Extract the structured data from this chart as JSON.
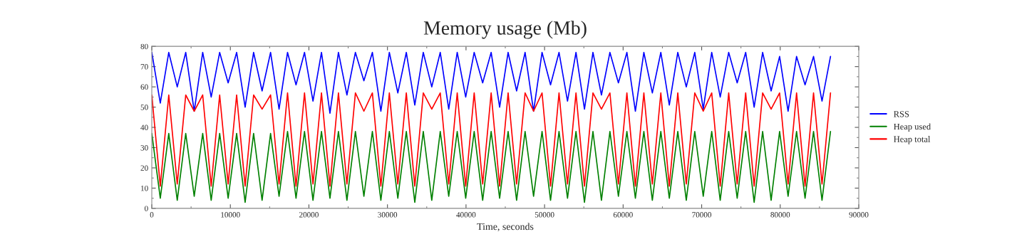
{
  "chart_data": {
    "type": "line",
    "title": "Memory usage (Mb)",
    "xlabel": "Time, seconds",
    "x": [
      0,
      1080,
      2160,
      3240,
      4320,
      5400,
      6480,
      7560,
      8640,
      9720,
      10800,
      11880,
      12960,
      14040,
      15120,
      16200,
      17280,
      18360,
      19440,
      20520,
      21600,
      22680,
      23760,
      24840,
      25920,
      27000,
      28080,
      29160,
      30240,
      31320,
      32400,
      33480,
      34560,
      35640,
      36720,
      37800,
      38880,
      39960,
      41040,
      42120,
      43200,
      44280,
      45360,
      46440,
      47520,
      48600,
      49680,
      50760,
      51840,
      52920,
      54000,
      55080,
      56160,
      57240,
      58320,
      59400,
      60480,
      61560,
      62640,
      63720,
      64800,
      65880,
      66960,
      68040,
      69120,
      70200,
      71280,
      72360,
      73440,
      74520,
      75600,
      76680,
      77760,
      78840,
      79920,
      81000,
      82080,
      83160,
      84240,
      85320,
      86400
    ],
    "series": [
      {
        "name": "RSS",
        "color": "#0000ff",
        "values": [
          77,
          52,
          77,
          60,
          77,
          48,
          77,
          55,
          77,
          62,
          77,
          50,
          77,
          58,
          77,
          49,
          77,
          61,
          77,
          53,
          77,
          47,
          77,
          56,
          77,
          63,
          77,
          48,
          77,
          57,
          77,
          51,
          77,
          60,
          77,
          49,
          77,
          55,
          77,
          62,
          77,
          50,
          77,
          58,
          77,
          48,
          77,
          61,
          77,
          53,
          77,
          49,
          77,
          56,
          77,
          62,
          77,
          48,
          77,
          57,
          77,
          51,
          77,
          60,
          77,
          49,
          77,
          55,
          77,
          62,
          77,
          50,
          77,
          58,
          75,
          48,
          75,
          61,
          75,
          53,
          75
        ]
      },
      {
        "name": "Heap used",
        "color": "#008000",
        "values": [
          37,
          5,
          37,
          4,
          37,
          6,
          37,
          4,
          37,
          5,
          37,
          3,
          37,
          4,
          37,
          6,
          38,
          5,
          38,
          4,
          38,
          5,
          38,
          4,
          38,
          6,
          38,
          4,
          38,
          5,
          38,
          3,
          38,
          4,
          38,
          6,
          38,
          5,
          38,
          4,
          38,
          5,
          38,
          4,
          38,
          6,
          38,
          4,
          38,
          5,
          38,
          3,
          38,
          4,
          38,
          6,
          38,
          5,
          38,
          4,
          38,
          5,
          38,
          4,
          38,
          6,
          38,
          4,
          38,
          5,
          38,
          3,
          38,
          4,
          38,
          6,
          38,
          5,
          38,
          4,
          38
        ]
      },
      {
        "name": "Heap total",
        "color": "#ff0000",
        "values": [
          56,
          11,
          56,
          12,
          56,
          48,
          56,
          11,
          56,
          12,
          56,
          11,
          56,
          49,
          56,
          12,
          57,
          11,
          57,
          12,
          57,
          11,
          57,
          12,
          57,
          48,
          57,
          11,
          57,
          12,
          57,
          11,
          57,
          49,
          57,
          12,
          57,
          11,
          57,
          12,
          57,
          11,
          57,
          12,
          57,
          48,
          57,
          11,
          57,
          12,
          57,
          11,
          57,
          49,
          57,
          12,
          57,
          11,
          57,
          12,
          57,
          11,
          57,
          12,
          57,
          48,
          57,
          11,
          57,
          12,
          57,
          11,
          57,
          49,
          57,
          12,
          57,
          11,
          57,
          12,
          57
        ]
      }
    ],
    "xlim": [
      0,
      90000
    ],
    "xticks": [
      0,
      10000,
      20000,
      30000,
      40000,
      50000,
      60000,
      70000,
      80000,
      90000
    ],
    "ylim": [
      0,
      80
    ],
    "yticks": [
      0,
      10,
      20,
      30,
      40,
      50,
      60,
      70,
      80
    ],
    "legend": "right",
    "grid": false
  }
}
